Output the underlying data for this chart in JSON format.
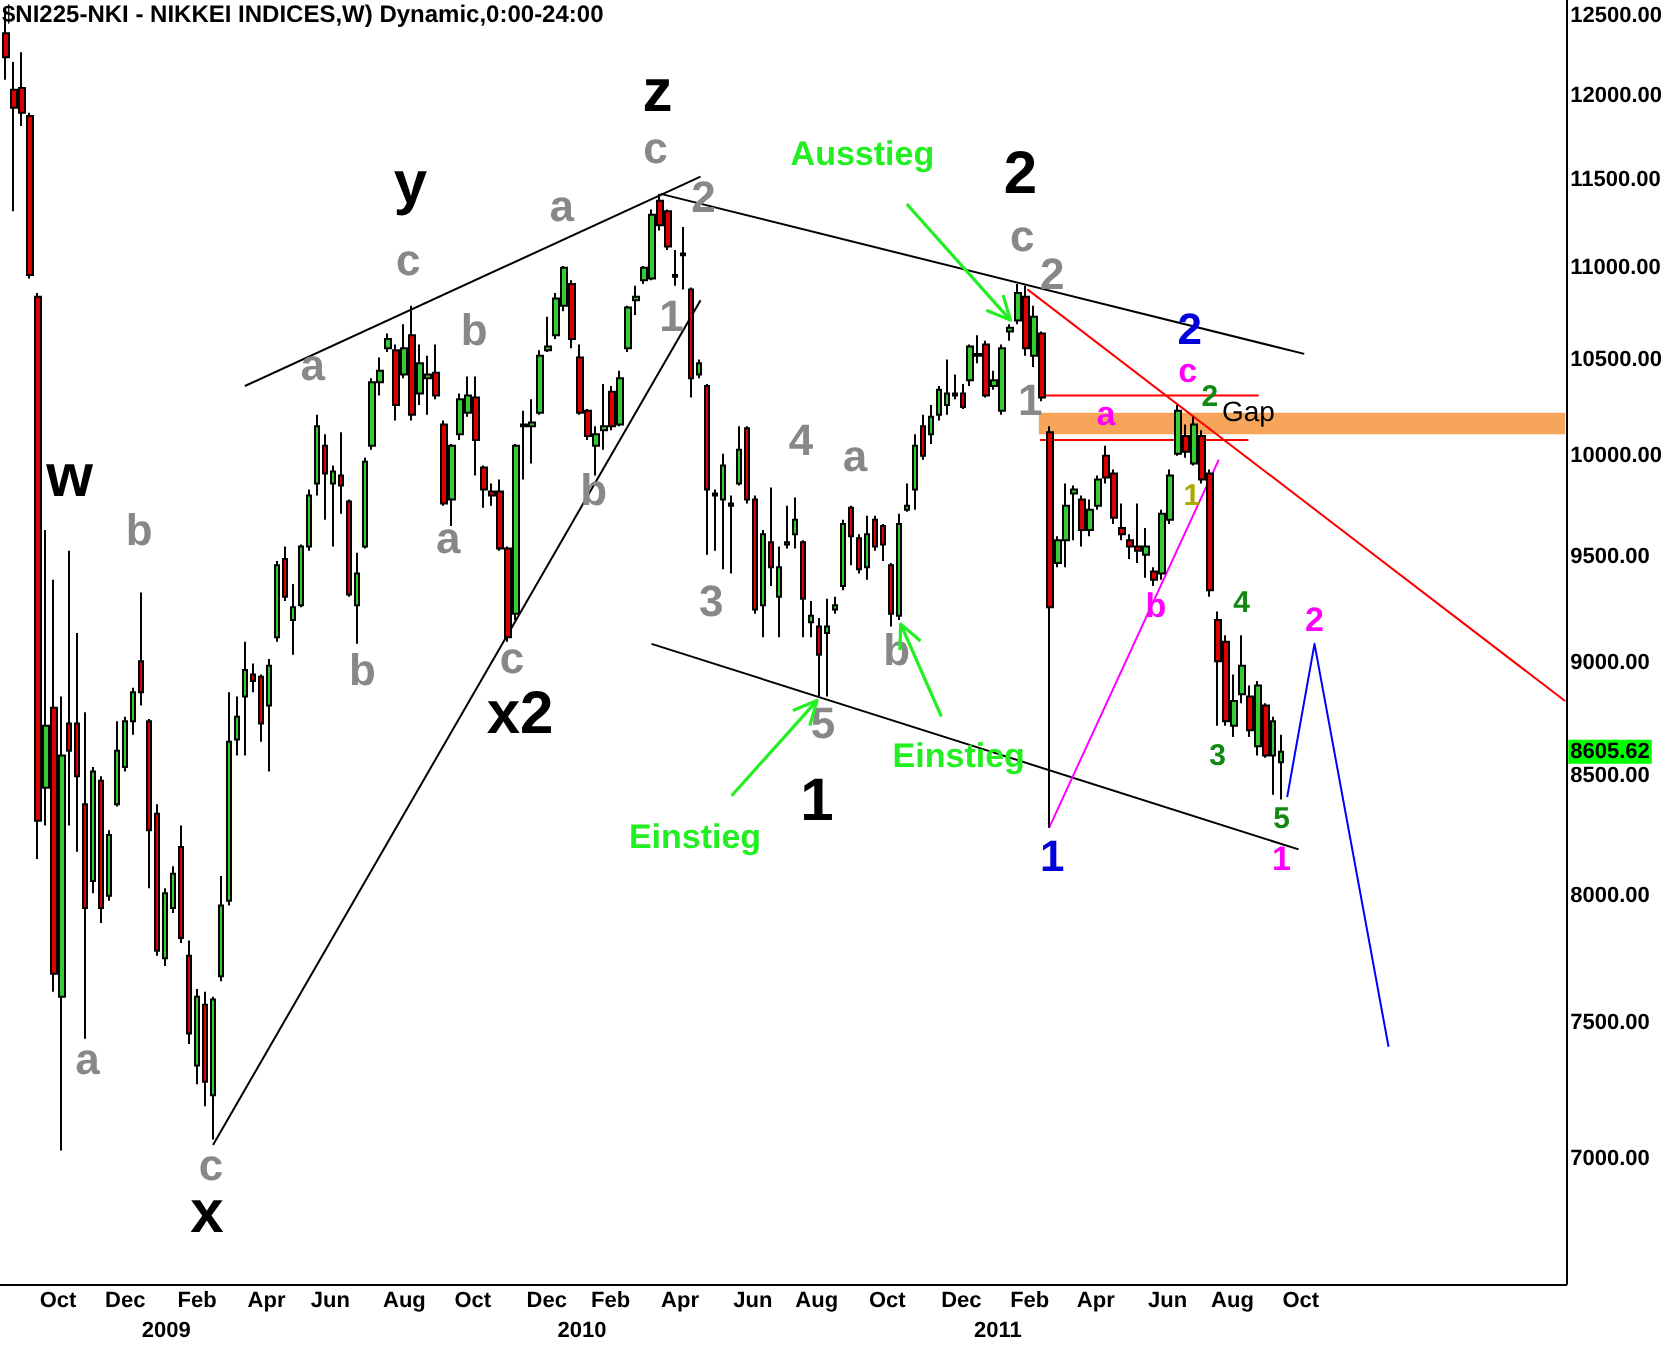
{
  "chart_data": {
    "type": "candlestick",
    "title": "$NI225-NKI - NIKKEI INDICES,W) Dynamic,0:00-24:00",
    "log": "y",
    "xlim": [
      "2008-09-07",
      "2012-06-13"
    ],
    "xticks": [
      {
        "value": "2008-10-28",
        "label": "Oct"
      },
      {
        "value": "2008-12-26",
        "label": "Dec"
      },
      {
        "value": "2009-02-27",
        "label": "Feb"
      },
      {
        "value": "2009-04-29",
        "label": "Apr"
      },
      {
        "value": "2009-06-24",
        "label": "Jun"
      },
      {
        "value": "2009-08-28",
        "label": "Aug"
      },
      {
        "value": "2009-10-27",
        "label": "Oct"
      },
      {
        "value": "2009-12-31",
        "label": "Dec"
      },
      {
        "value": "2010-02-25",
        "label": "Feb"
      },
      {
        "value": "2010-04-27",
        "label": "Apr"
      },
      {
        "value": "2010-06-30",
        "label": "Jun"
      },
      {
        "value": "2010-08-25",
        "label": "Aug"
      },
      {
        "value": "2010-10-26",
        "label": "Oct"
      },
      {
        "value": "2010-12-30",
        "label": "Dec"
      },
      {
        "value": "2011-02-28",
        "label": "Feb"
      },
      {
        "value": "2011-04-27",
        "label": "Apr"
      },
      {
        "value": "2011-06-29",
        "label": "Jun"
      },
      {
        "value": "2011-08-25",
        "label": "Aug"
      },
      {
        "value": "2011-10-24",
        "label": "Oct"
      }
    ],
    "x2lim": [
      "2008-09-07",
      "2012-06-13"
    ],
    "x2ticks": [
      {
        "value": "2009-01-31",
        "label": "2009"
      },
      {
        "value": "2010-01-31",
        "label": "2010"
      },
      {
        "value": "2011-01-31",
        "label": "2011"
      }
    ],
    "ylim": [
      6570,
      12600
    ],
    "yticks": [
      {
        "value": 7000,
        "label": "7000.00"
      },
      {
        "value": 7500,
        "label": "7500.00"
      },
      {
        "value": 8000,
        "label": "8000.00"
      },
      {
        "value": 8500,
        "label": "8500.00"
      },
      {
        "value": 9000,
        "label": "9000.00"
      },
      {
        "value": 9500,
        "label": "9500.00"
      },
      {
        "value": 10000,
        "label": "10000.00"
      },
      {
        "value": 10500,
        "label": "10500.00"
      },
      {
        "value": 11000,
        "label": "11000.00"
      },
      {
        "value": 11500,
        "label": "11500.00"
      },
      {
        "value": 12000,
        "label": "12000.00"
      },
      {
        "value": 12500,
        "label": "12500.00"
      }
    ],
    "x": [
      "2008-09-12",
      "2008-09-19",
      "2008-09-26",
      "2008-10-03",
      "2008-10-10",
      "2008-10-17",
      "2008-10-24",
      "2008-10-31",
      "2008-11-07",
      "2008-11-14",
      "2008-11-21",
      "2008-11-28",
      "2008-12-05",
      "2008-12-12",
      "2008-12-19",
      "2008-12-26",
      "2009-01-02",
      "2009-01-09",
      "2009-01-16",
      "2009-01-23",
      "2009-01-30",
      "2009-02-06",
      "2009-02-13",
      "2009-02-20",
      "2009-02-27",
      "2009-03-06",
      "2009-03-13",
      "2009-03-20",
      "2009-03-27",
      "2009-04-03",
      "2009-04-10",
      "2009-04-17",
      "2009-04-24",
      "2009-05-01",
      "2009-05-08",
      "2009-05-15",
      "2009-05-22",
      "2009-05-29",
      "2009-06-05",
      "2009-06-12",
      "2009-06-19",
      "2009-06-26",
      "2009-07-03",
      "2009-07-10",
      "2009-07-17",
      "2009-07-24",
      "2009-07-31",
      "2009-08-07",
      "2009-08-14",
      "2009-08-21",
      "2009-08-28",
      "2009-09-04",
      "2009-09-11",
      "2009-09-18",
      "2009-09-25",
      "2009-10-02",
      "2009-10-09",
      "2009-10-16",
      "2009-10-23",
      "2009-10-30",
      "2009-11-06",
      "2009-11-13",
      "2009-11-20",
      "2009-11-27",
      "2009-12-04",
      "2009-12-11",
      "2009-12-18",
      "2009-12-25",
      "2010-01-01",
      "2010-01-08",
      "2010-01-15",
      "2010-01-22",
      "2010-01-29",
      "2010-02-05",
      "2010-02-12",
      "2010-02-19",
      "2010-02-26",
      "2010-03-05",
      "2010-03-12",
      "2010-03-19",
      "2010-03-26",
      "2010-04-02",
      "2010-04-09",
      "2010-04-16",
      "2010-04-23",
      "2010-04-30",
      "2010-05-07",
      "2010-05-14",
      "2010-05-21",
      "2010-05-28",
      "2010-06-04",
      "2010-06-11",
      "2010-06-18",
      "2010-06-25",
      "2010-07-02",
      "2010-07-09",
      "2010-07-16",
      "2010-07-23",
      "2010-07-30",
      "2010-08-06",
      "2010-08-13",
      "2010-08-20",
      "2010-08-27",
      "2010-09-03",
      "2010-09-10",
      "2010-09-17",
      "2010-09-24",
      "2010-10-01",
      "2010-10-08",
      "2010-10-15",
      "2010-10-22",
      "2010-10-29",
      "2010-11-05",
      "2010-11-12",
      "2010-11-19",
      "2010-11-26",
      "2010-12-03",
      "2010-12-10",
      "2010-12-17",
      "2010-12-24",
      "2010-12-31",
      "2011-01-07",
      "2011-01-14",
      "2011-01-21",
      "2011-01-28",
      "2011-02-04",
      "2011-02-11",
      "2011-02-18",
      "2011-02-25",
      "2011-03-04",
      "2011-03-11",
      "2011-03-18",
      "2011-03-25",
      "2011-04-01",
      "2011-04-08",
      "2011-04-15",
      "2011-04-22",
      "2011-04-29",
      "2011-05-06",
      "2011-05-13",
      "2011-05-20",
      "2011-05-27",
      "2011-06-03",
      "2011-06-10",
      "2011-06-17",
      "2011-06-24",
      "2011-07-01",
      "2011-07-08",
      "2011-07-15",
      "2011-07-22",
      "2011-07-29",
      "2011-08-05",
      "2011-08-12",
      "2011-08-19",
      "2011-08-26",
      "2011-09-02",
      "2011-09-09",
      "2011-09-16",
      "2011-09-23",
      "2011-09-30",
      "2011-10-07"
    ],
    "ohlc": [
      [
        12390,
        12550,
        12100,
        12240
      ],
      [
        12040,
        12210,
        11320,
        11930
      ],
      [
        12050,
        12270,
        11820,
        11900
      ],
      [
        11880,
        11900,
        10940,
        10960
      ],
      [
        10840,
        10860,
        8150,
        8310
      ],
      [
        8450,
        9630,
        8290,
        8720
      ],
      [
        8800,
        9390,
        7620,
        7690
      ],
      [
        7600,
        8850,
        7030,
        8590
      ],
      [
        8730,
        9530,
        8290,
        8610
      ],
      [
        8730,
        9140,
        8180,
        8500
      ],
      [
        8380,
        8780,
        7440,
        7950
      ],
      [
        8060,
        8540,
        8010,
        8520
      ],
      [
        8480,
        8500,
        7890,
        7950
      ],
      [
        8000,
        8270,
        7980,
        8250
      ],
      [
        8380,
        8740,
        8370,
        8610
      ],
      [
        8540,
        8760,
        8520,
        8740
      ],
      [
        8740,
        8890,
        8680,
        8870
      ],
      [
        9010,
        9330,
        8810,
        8870
      ],
      [
        8740,
        8750,
        8030,
        8270
      ],
      [
        8340,
        8380,
        7760,
        7780
      ],
      [
        7750,
        8030,
        7720,
        8010
      ],
      [
        7950,
        8120,
        7930,
        8090
      ],
      [
        8200,
        8290,
        7810,
        7830
      ],
      [
        7760,
        7820,
        7420,
        7460
      ],
      [
        7340,
        7630,
        7270,
        7600
      ],
      [
        7570,
        7620,
        7190,
        7280
      ],
      [
        7230,
        7600,
        7070,
        7590
      ],
      [
        7680,
        8080,
        7660,
        7960
      ],
      [
        7980,
        8870,
        7960,
        8650
      ],
      [
        8660,
        8850,
        8590,
        8760
      ],
      [
        8850,
        9100,
        8590,
        8970
      ],
      [
        8950,
        9000,
        8870,
        8920
      ],
      [
        8940,
        8950,
        8650,
        8730
      ],
      [
        8810,
        9020,
        8520,
        8990
      ],
      [
        9120,
        9480,
        9100,
        9460
      ],
      [
        9490,
        9550,
        9290,
        9310
      ],
      [
        9200,
        9370,
        9040,
        9260
      ],
      [
        9270,
        9560,
        9260,
        9550
      ],
      [
        9550,
        9830,
        9530,
        9800
      ],
      [
        9860,
        10210,
        9800,
        10150
      ],
      [
        10050,
        10110,
        9680,
        9910
      ],
      [
        9860,
        9950,
        9550,
        9920
      ],
      [
        9900,
        10120,
        9710,
        9850
      ],
      [
        9770,
        9780,
        9310,
        9320
      ],
      [
        9270,
        9520,
        9090,
        9420
      ],
      [
        9550,
        9990,
        9540,
        9970
      ],
      [
        10050,
        10400,
        10030,
        10380
      ],
      [
        10380,
        10510,
        10310,
        10440
      ],
      [
        10560,
        10640,
        10540,
        10610
      ],
      [
        10550,
        10580,
        10180,
        10260
      ],
      [
        10420,
        10690,
        10400,
        10560
      ],
      [
        10630,
        10790,
        10180,
        10210
      ],
      [
        10320,
        10580,
        10260,
        10480
      ],
      [
        10400,
        10520,
        10210,
        10420
      ],
      [
        10430,
        10580,
        10290,
        10310
      ],
      [
        10160,
        10180,
        9750,
        9760
      ],
      [
        9780,
        10060,
        9650,
        10050
      ],
      [
        10110,
        10320,
        10080,
        10290
      ],
      [
        10220,
        10410,
        10200,
        10310
      ],
      [
        10300,
        10410,
        9900,
        10080
      ],
      [
        9940,
        9950,
        9740,
        9830
      ],
      [
        9820,
        9860,
        9750,
        9800
      ],
      [
        9820,
        9880,
        9530,
        9540
      ],
      [
        9540,
        9550,
        9100,
        9120
      ],
      [
        9230,
        10060,
        9200,
        10050
      ],
      [
        10150,
        10230,
        9880,
        10160
      ],
      [
        10150,
        10290,
        9960,
        10170
      ],
      [
        10220,
        10550,
        10210,
        10520
      ],
      [
        10550,
        10730,
        10540,
        10570
      ],
      [
        10630,
        10860,
        10610,
        10830
      ],
      [
        10790,
        11010,
        10760,
        11000
      ],
      [
        10910,
        10930,
        10560,
        10610
      ],
      [
        10510,
        10580,
        10210,
        10220
      ],
      [
        10230,
        10240,
        10080,
        10100
      ],
      [
        10050,
        10150,
        9900,
        10110
      ],
      [
        10130,
        10370,
        10030,
        10150
      ],
      [
        10330,
        10360,
        10130,
        10150
      ],
      [
        10160,
        10440,
        10150,
        10400
      ],
      [
        10560,
        10790,
        10540,
        10780
      ],
      [
        10820,
        10900,
        10740,
        10840
      ],
      [
        10930,
        11010,
        10910,
        11000
      ],
      [
        10940,
        11330,
        10930,
        11300
      ],
      [
        11380,
        11420,
        11210,
        11240
      ],
      [
        11320,
        11330,
        11100,
        11120
      ],
      [
        10960,
        11100,
        10900,
        10950
      ],
      [
        11080,
        11230,
        10880,
        11070
      ],
      [
        10880,
        10890,
        10300,
        10400
      ],
      [
        10420,
        10500,
        10400,
        10480
      ],
      [
        10360,
        10370,
        9510,
        9830
      ],
      [
        9810,
        9830,
        9530,
        9800
      ],
      [
        9780,
        10010,
        9440,
        9950
      ],
      [
        9760,
        9800,
        9420,
        9750
      ],
      [
        9860,
        10150,
        9850,
        10030
      ],
      [
        10140,
        10150,
        9760,
        9780
      ],
      [
        9780,
        9800,
        9230,
        9250
      ],
      [
        9270,
        9630,
        9120,
        9610
      ],
      [
        9570,
        9840,
        9360,
        9450
      ],
      [
        9310,
        9550,
        9120,
        9450
      ],
      [
        9560,
        9750,
        9540,
        9570
      ],
      [
        9610,
        9790,
        9540,
        9680
      ],
      [
        9570,
        9580,
        9120,
        9300
      ],
      [
        9190,
        9290,
        9120,
        9220
      ],
      [
        9170,
        9210,
        8850,
        9040
      ],
      [
        9140,
        9300,
        8850,
        9170
      ],
      [
        9250,
        9310,
        9230,
        9270
      ],
      [
        9360,
        9680,
        9340,
        9660
      ],
      [
        9740,
        9750,
        9460,
        9600
      ],
      [
        9590,
        9610,
        9420,
        9440
      ],
      [
        9450,
        9700,
        9390,
        9610
      ],
      [
        9680,
        9700,
        9530,
        9550
      ],
      [
        9650,
        9660,
        9480,
        9560
      ],
      [
        9460,
        9470,
        9170,
        9230
      ],
      [
        9220,
        9710,
        9200,
        9660
      ],
      [
        9730,
        9860,
        9720,
        9750
      ],
      [
        9830,
        10110,
        9730,
        10050
      ],
      [
        10150,
        10210,
        9980,
        10000
      ],
      [
        10110,
        10260,
        10060,
        10200
      ],
      [
        10210,
        10360,
        10180,
        10340
      ],
      [
        10260,
        10500,
        10210,
        10320
      ],
      [
        10310,
        10420,
        10290,
        10320
      ],
      [
        10320,
        10370,
        10240,
        10250
      ],
      [
        10390,
        10580,
        10360,
        10570
      ],
      [
        10520,
        10630,
        10480,
        10530
      ],
      [
        10580,
        10600,
        10300,
        10310
      ],
      [
        10360,
        10440,
        10340,
        10390
      ],
      [
        10230,
        10580,
        10210,
        10560
      ],
      [
        10650,
        10690,
        10600,
        10670
      ],
      [
        10710,
        10910,
        10690,
        10860
      ],
      [
        10840,
        10900,
        10520,
        10560
      ],
      [
        10520,
        10790,
        10460,
        10730
      ],
      [
        10640,
        10650,
        10280,
        10300
      ],
      [
        10120,
        10150,
        8280,
        9260
      ],
      [
        9470,
        9600,
        9450,
        9580
      ],
      [
        9580,
        9860,
        9450,
        9750
      ],
      [
        9810,
        9850,
        9580,
        9830
      ],
      [
        9780,
        9800,
        9550,
        9630
      ],
      [
        9630,
        9780,
        9600,
        9730
      ],
      [
        9750,
        9900,
        9730,
        9880
      ],
      [
        10000,
        10050,
        9860,
        9890
      ],
      [
        9910,
        9930,
        9660,
        9690
      ],
      [
        9640,
        9760,
        9580,
        9610
      ],
      [
        9580,
        9610,
        9490,
        9550
      ],
      [
        9550,
        9760,
        9470,
        9530
      ],
      [
        9510,
        9640,
        9400,
        9550
      ],
      [
        9430,
        9450,
        9360,
        9390
      ],
      [
        9420,
        9730,
        9390,
        9710
      ],
      [
        9680,
        9930,
        9660,
        9900
      ],
      [
        10010,
        10260,
        10000,
        10230
      ],
      [
        10100,
        10160,
        9990,
        10020
      ],
      [
        9960,
        10200,
        9950,
        10160
      ],
      [
        10100,
        10130,
        9860,
        9880
      ],
      [
        9910,
        9930,
        9310,
        9340
      ],
      [
        9200,
        9240,
        8720,
        9010
      ],
      [
        9100,
        9130,
        8720,
        8740
      ],
      [
        8720,
        8950,
        8670,
        8830
      ],
      [
        8860,
        9130,
        8820,
        8990
      ],
      [
        8850,
        8900,
        8670,
        8700
      ],
      [
        8630,
        8920,
        8590,
        8900
      ],
      [
        8810,
        8820,
        8580,
        8590
      ],
      [
        8590,
        8760,
        8420,
        8740
      ],
      [
        8560,
        8680,
        8400,
        8605.62
      ]
    ],
    "series": [
      {
        "type": "line",
        "color": "#000000",
        "x": [
          "2009-04-10",
          "2010-05-15"
        ],
        "values": [
          10360,
          11520
        ]
      },
      {
        "type": "line",
        "color": "#000000",
        "x": [
          "2009-03-13",
          "2010-05-15"
        ],
        "values": [
          7050,
          10820
        ]
      },
      {
        "type": "line",
        "color": "#000000",
        "x": [
          "2010-04-10",
          "2011-10-27"
        ],
        "values": [
          11420,
          10530
        ]
      },
      {
        "type": "line",
        "color": "#000000",
        "x": [
          "2010-04-02",
          "2011-10-22"
        ],
        "values": [
          9090,
          8190
        ]
      },
      {
        "type": "line",
        "color": "#ff0000",
        "x": [
          "2011-02-26",
          "2012-06-12"
        ],
        "values": [
          10880,
          8830
        ]
      },
      {
        "type": "line",
        "color": "#ff0000",
        "x": [
          "2011-03-14",
          "2011-09-17"
        ],
        "values": [
          10310,
          10310
        ]
      },
      {
        "type": "line",
        "color": "#ff0000",
        "x": [
          "2011-03-09",
          "2011-09-08"
        ],
        "values": [
          10080,
          10080
        ]
      },
      {
        "type": "line",
        "color": "#ff00ff",
        "x": [
          "2011-03-17",
          "2011-08-13"
        ],
        "values": [
          8280,
          9980
        ]
      },
      {
        "type": "line",
        "color": "#0000ff",
        "x": [
          "2011-10-12",
          "2011-11-05",
          "2012-01-09"
        ],
        "values": [
          8410,
          9090,
          7410
        ]
      },
      {
        "type": "line",
        "color": "#f6a55a",
        "x": [
          "2011-03-08",
          "2012-06-12"
        ],
        "values": [
          null,
          null
        ],
        "lower": [
          10110,
          10110
        ],
        "upper": [
          10220,
          10220
        ]
      }
    ],
    "annotations": [
      {
        "text": "w",
        "x": "2008-11-07",
        "y": 9530
      },
      {
        "text": "b",
        "x": "2009-01-09",
        "y": 9330
      },
      {
        "text": "a",
        "x": "2008-11-21",
        "y": 7440
      },
      {
        "text": "c",
        "x": "2009-03-13",
        "y": 7070
      },
      {
        "text": "x",
        "x": "2009-03-13",
        "y": 7070
      },
      {
        "text": "a",
        "x": "2009-06-12",
        "y": 10210
      },
      {
        "text": "c",
        "x": "2009-09-04",
        "y": 10790
      },
      {
        "text": "y",
        "x": "2009-09-04",
        "y": 10790
      },
      {
        "text": "b",
        "x": "2009-10-30",
        "y": 10410
      },
      {
        "text": "b",
        "x": "2009-07-17",
        "y": 9090
      },
      {
        "text": "a",
        "x": "2009-10-09",
        "y": 9650
      },
      {
        "text": "a",
        "x": "2010-01-15",
        "y": 11010
      },
      {
        "text": "b",
        "x": "2010-02-12",
        "y": 9900
      },
      {
        "text": "c",
        "x": "2009-11-27",
        "y": 9100
      },
      {
        "text": "x2",
        "x": "2009-11-27",
        "y": 9100
      },
      {
        "text": "c",
        "x": "2010-04-09",
        "y": 11420
      },
      {
        "text": "z",
        "x": "2010-04-09",
        "y": 11420
      },
      {
        "text": "2",
        "x": "2010-04-30",
        "y": 11230
      },
      {
        "text": "1",
        "x": "2010-04-23",
        "y": 10900
      },
      {
        "text": "3",
        "x": "2010-05-21",
        "y": 9510
      },
      {
        "text": "4",
        "x": "2010-08-06",
        "y": 9790
      },
      {
        "text": "a",
        "x": "2010-09-24",
        "y": 9750
      },
      {
        "text": "b",
        "x": "2010-11-05",
        "y": 9200
      },
      {
        "text": "5",
        "x": "2010-08-27",
        "y": 8850
      },
      {
        "text": "1",
        "x": "2010-08-27",
        "y": 8850
      },
      {
        "text": "Einstieg",
        "x": "2010-08-27",
        "y": 8850
      },
      {
        "text": "Einstieg",
        "x": "2010-11-05",
        "y": 9200
      },
      {
        "text": "Ausstieg",
        "x": "2011-02-11",
        "y": 10690
      },
      {
        "text": "2",
        "x": "2011-02-18",
        "y": 10910
      },
      {
        "text": "c",
        "x": "2011-02-18",
        "y": 10910
      },
      {
        "text": "2",
        "x": "2011-03-04",
        "y": 10790
      },
      {
        "text": "1",
        "x": "2011-02-25",
        "y": 10520
      },
      {
        "text": "2",
        "x": "2011-07-08",
        "y": 10260
      },
      {
        "text": "c",
        "x": "2011-07-08",
        "y": 10260
      },
      {
        "text": "a",
        "x": "2011-05-06",
        "y": 10050
      },
      {
        "text": "2",
        "x": "2011-07-22",
        "y": 10200
      },
      {
        "text": "Gap",
        "x": "2011-09-08",
        "y": 10220
      },
      {
        "text": "1",
        "x": "2011-07-29",
        "y": 9860
      },
      {
        "text": "b",
        "x": "2011-06-17",
        "y": 9360
      },
      {
        "text": "4",
        "x": "2011-09-02",
        "y": 9130
      },
      {
        "text": "3",
        "x": "2011-08-12",
        "y": 8720
      },
      {
        "text": "5",
        "x": "2011-10-07",
        "y": 8400
      },
      {
        "text": "1",
        "x": "2011-10-07",
        "y": 8400
      },
      {
        "text": "2",
        "x": "2011-11-05",
        "y": 9090
      },
      {
        "text": "1",
        "x": "2011-03-18",
        "y": 8280
      },
      "8605.62"
    ]
  }
}
